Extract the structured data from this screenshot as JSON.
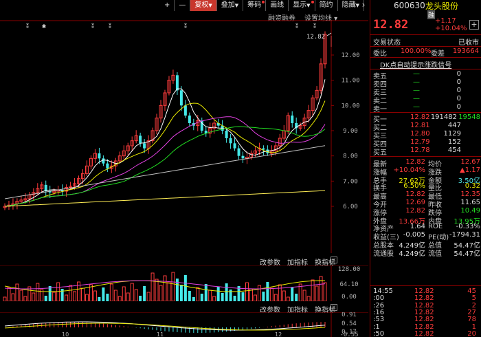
{
  "toolbar": {
    "items": [
      {
        "label": "+"
      },
      {
        "label": "—"
      },
      {
        "label": "复权",
        "arrow": "▼"
      },
      {
        "label": "叠加",
        "arrow": "▼"
      },
      {
        "label": "筹码"
      },
      {
        "label": "画线"
      },
      {
        "label": "显示",
        "arrow": "▼"
      },
      {
        "label": "简约"
      },
      {
        "label": "隐藏",
        "arrow": "▼"
      }
    ],
    "nav_left": "‹",
    "nav_right": "›"
  },
  "main_chart": {
    "header_left": "融资融券",
    "header_right": "设置均线 ▾",
    "price_tag": "12.82",
    "y_ticks": [
      "12.00",
      "11.00",
      "10.00",
      "9.00",
      "8.00",
      "7.00",
      "6.00"
    ],
    "marker_star": "✱",
    "marker_cross": "⁑"
  },
  "volume_chart": {
    "header": [
      "改参数",
      "加指标",
      "换指标"
    ],
    "y_ticks": [
      "128.00",
      "64.10",
      "0.00"
    ]
  },
  "macd_chart": {
    "header": [
      "改参数",
      "加指标",
      "换指标"
    ],
    "y_ticks": [
      "0.91",
      "0.54",
      "0.17",
      "-0.55"
    ]
  },
  "x_axis": [
    "10",
    "11",
    "12"
  ],
  "stock": {
    "code": "600630",
    "name": "龙头股份",
    "tag": "融",
    "price": "12.82",
    "change": "+1.17",
    "change_pct": "+10.04%",
    "status_label": "交易状态",
    "status_value": "已收市",
    "weibi_label": "委比",
    "weibi_value": "100.00%",
    "weicha_label": "委差",
    "weicha_value": "193664",
    "signal": "DK点自动提示涨跌信号"
  },
  "order_book": {
    "sell": [
      {
        "label": "卖五",
        "price": "—",
        "vol": "0"
      },
      {
        "label": "卖四",
        "price": "—",
        "vol": "0"
      },
      {
        "label": "卖三",
        "price": "—",
        "vol": "0"
      },
      {
        "label": "卖二",
        "price": "—",
        "vol": "0"
      },
      {
        "label": "卖一",
        "price": "—",
        "vol": "0"
      }
    ],
    "buy": [
      {
        "label": "买一",
        "price": "12.82",
        "vol": "191482",
        "extra": "19548"
      },
      {
        "label": "买二",
        "price": "12.81",
        "vol": "447"
      },
      {
        "label": "买三",
        "price": "12.80",
        "vol": "1129"
      },
      {
        "label": "买四",
        "price": "12.79",
        "vol": "152"
      },
      {
        "label": "买五",
        "price": "12.78",
        "vol": "454"
      }
    ]
  },
  "stats": [
    {
      "l1": "最新",
      "v1": "12.82",
      "c1": "red",
      "l2": "均价",
      "v2": "12.67",
      "c2": "red"
    },
    {
      "l1": "涨幅",
      "v1": "+10.04%",
      "c1": "red",
      "l2": "涨跌",
      "v2": "▲1.17",
      "c2": "red"
    },
    {
      "l1": "总手",
      "v1": "27.62万",
      "c1": "yellow",
      "l2": "金额",
      "v2": "3.50亿",
      "c2": "cyan"
    },
    {
      "l1": "换手",
      "v1": "6.50%",
      "c1": "yellow",
      "l2": "量比",
      "v2": "0.32",
      "c2": "yellow"
    },
    {
      "l1": "最高",
      "v1": "12.82",
      "c1": "red",
      "l2": "最低",
      "v2": "12.35",
      "c2": "red"
    },
    {
      "l1": "今开",
      "v1": "12.69",
      "c1": "red",
      "l2": "昨收",
      "v2": "11.65",
      "c2": "white"
    },
    {
      "l1": "涨停",
      "v1": "12.82",
      "c1": "red",
      "l2": "跌停",
      "v2": "10.49",
      "c2": "green"
    },
    {
      "l1": "外盘",
      "v1": "13.66万",
      "c1": "red",
      "l2": "内盘",
      "v2": "13.95万",
      "c2": "green"
    },
    {
      "l1": "净资产",
      "v1": "1.64",
      "c1": "white",
      "l2": "ROE",
      "v2": "-0.33%",
      "c2": "white"
    },
    {
      "l1": "收益(三)",
      "v1": "-0.005",
      "c1": "white",
      "l2": "PE(动)",
      "v2": "-1794.31",
      "c2": "white"
    },
    {
      "l1": "总股本",
      "v1": "4.249亿",
      "c1": "white",
      "l2": "总值",
      "v2": "54.47亿",
      "c2": "white"
    },
    {
      "l1": "流通股",
      "v1": "4.249亿",
      "c1": "white",
      "l2": "流值",
      "v2": "54.47亿",
      "c2": "white"
    }
  ],
  "ticks": [
    {
      "time": "14:55",
      "price": "12.82",
      "vol": "45"
    },
    {
      "time": ":00",
      "price": "12.82",
      "vol": "5"
    },
    {
      "time": ":26",
      "price": "12.82",
      "vol": "2"
    },
    {
      "time": ":16",
      "price": "12.82",
      "vol": "27"
    },
    {
      "time": ":53",
      "price": "12.82",
      "vol": "78"
    },
    {
      "time": ":1",
      "price": "12.82",
      "vol": "1"
    },
    {
      "time": ":50",
      "price": "12.82",
      "vol": "20"
    }
  ],
  "colors": {
    "up": "#ff3c3c",
    "down": "#44e8e8",
    "ma5": "#ffffff",
    "ma10": "#e8e800",
    "ma20": "#e040e0",
    "ma30": "#22dd22",
    "ma60": "#c0c0c0",
    "ma120": "#ffee55"
  }
}
